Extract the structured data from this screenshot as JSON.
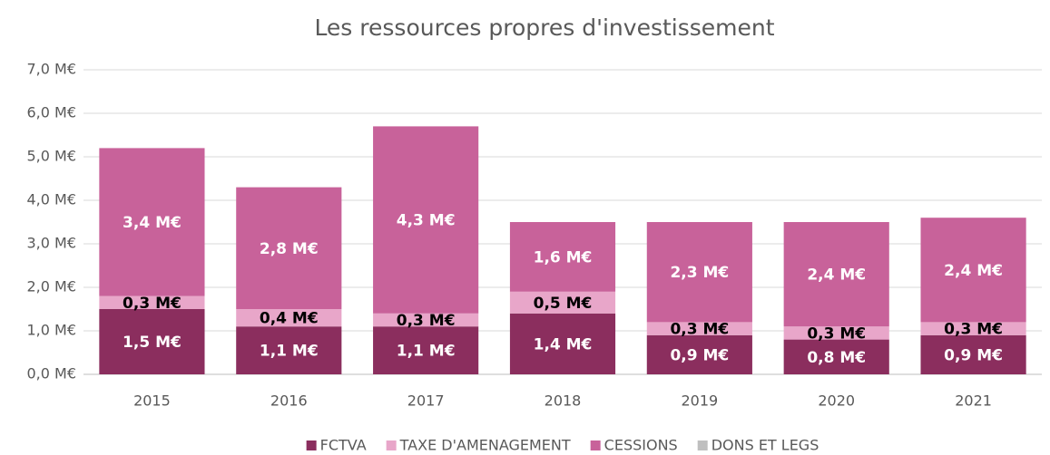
{
  "chart_data": {
    "type": "bar",
    "stacked": true,
    "title": "Les ressources propres d'investissement",
    "categories": [
      "2015",
      "2016",
      "2017",
      "2018",
      "2019",
      "2020",
      "2021"
    ],
    "series": [
      {
        "name": "FCTVA",
        "color": "#8b2e5e",
        "label_color": "#ffffff",
        "values": [
          1.5,
          1.1,
          1.1,
          1.4,
          0.9,
          0.8,
          0.9
        ],
        "value_labels": [
          "1,5 M€",
          "1,1 M€",
          "1,1 M€",
          "1,4 M€",
          "0,9 M€",
          "0,8 M€",
          "0,9 M€"
        ]
      },
      {
        "name": "TAXE D'AMENAGEMENT",
        "color": "#e8a6c9",
        "label_color": "#000000",
        "values": [
          0.3,
          0.4,
          0.3,
          0.5,
          0.3,
          0.3,
          0.3
        ],
        "value_labels": [
          "0,3 M€",
          "0,4 M€",
          "0,3 M€",
          "0,5 M€",
          "0,3 M€",
          "0,3 M€",
          "0,3 M€"
        ]
      },
      {
        "name": "CESSIONS",
        "color": "#c8629a",
        "label_color": "#ffffff",
        "values": [
          3.4,
          2.8,
          4.3,
          1.6,
          2.3,
          2.4,
          2.4
        ],
        "value_labels": [
          "3,4 M€",
          "2,8 M€",
          "4,3 M€",
          "1,6 M€",
          "2,3 M€",
          "2,4 M€",
          "2,4 M€"
        ]
      },
      {
        "name": "DONS ET LEGS",
        "color": "#bfbfbf",
        "values": [
          0,
          0,
          0,
          0,
          0,
          0,
          0
        ]
      }
    ],
    "ylim": [
      0,
      7
    ],
    "yticks": [
      {
        "value": 0,
        "label": "0,0 M€"
      },
      {
        "value": 1,
        "label": "1,0 M€"
      },
      {
        "value": 2,
        "label": "2,0 M€"
      },
      {
        "value": 3,
        "label": "3,0 M€"
      },
      {
        "value": 4,
        "label": "4,0 M€"
      },
      {
        "value": 5,
        "label": "5,0 M€"
      },
      {
        "value": 6,
        "label": "6,0 M€"
      },
      {
        "value": 7,
        "label": "7,0 M€"
      }
    ],
    "grid": true,
    "legend": "bottom"
  }
}
